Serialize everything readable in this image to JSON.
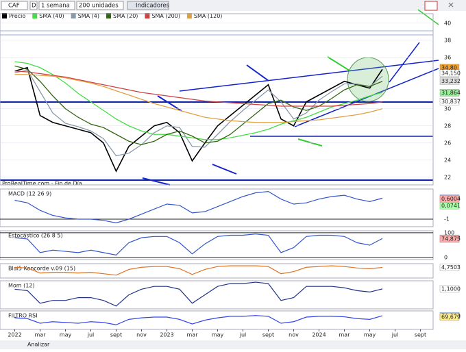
{
  "toolbar": {
    "symbol": "CAF",
    "period_letter": "D",
    "period": "1 semana",
    "units": "200 unidades",
    "indicators": "Indicadores"
  },
  "source": "ProRealTime.com - Fin de Día",
  "footer": {
    "analyze": "Analizar"
  },
  "chart_data": [
    {
      "type": "line",
      "panel": "price",
      "x": [
        "2022-01",
        "2022-02",
        "2022-03",
        "2022-04",
        "2022-05",
        "2022-06",
        "2022-07",
        "2022-08",
        "2022-09",
        "2022-10",
        "2022-11",
        "2022-12",
        "2023-01",
        "2023-02",
        "2023-03",
        "2023-04",
        "2023-05",
        "2023-06",
        "2023-07",
        "2023-08",
        "2023-09",
        "2023-10",
        "2023-11",
        "2023-12",
        "2024-01",
        "2024-02",
        "2024-03",
        "2024-04",
        "2024-05",
        "2024-06"
      ],
      "xlim": [
        "2021-12",
        "2024-10"
      ],
      "xticks": [
        {
          "value": "2022-01",
          "label": "2022"
        },
        {
          "value": "2022-03",
          "label": "mar"
        },
        {
          "value": "2022-05",
          "label": "may"
        },
        {
          "value": "2022-07",
          "label": "jul"
        },
        {
          "value": "2022-09",
          "label": "sept"
        },
        {
          "value": "2022-11",
          "label": "nov"
        },
        {
          "value": "2023-01",
          "label": "2023"
        },
        {
          "value": "2023-03",
          "label": "mar"
        },
        {
          "value": "2023-05",
          "label": "may"
        },
        {
          "value": "2023-07",
          "label": "jul"
        },
        {
          "value": "2023-09",
          "label": "sept"
        },
        {
          "value": "2023-11",
          "label": "nov"
        },
        {
          "value": "2024-01",
          "label": "2024"
        },
        {
          "value": "2024-03",
          "label": "mar"
        },
        {
          "value": "2024-05",
          "label": "may"
        },
        {
          "value": "2024-07",
          "label": "jul"
        },
        {
          "value": "2024-09",
          "label": "sept"
        }
      ],
      "ylim": [
        21.1,
        41.1
      ],
      "yticks": [
        40,
        38,
        36,
        30,
        28,
        26,
        24,
        22
      ],
      "series": [
        {
          "name": "Precio",
          "color": "#000000",
          "values": [
            34.4,
            34.8,
            29.2,
            28.4,
            28.0,
            27.6,
            27.2,
            26.0,
            22.7,
            25.6,
            26.8,
            28.0,
            28.4,
            27.2,
            23.9,
            26.0,
            28.0,
            29.2,
            30.4,
            31.6,
            32.8,
            28.8,
            28.0,
            30.8,
            31.6,
            32.4,
            33.2,
            32.8,
            32.4,
            34.6
          ]
        },
        {
          "name": "SMA (40)",
          "color": "#44dd44",
          "values": [
            35.5,
            35.3,
            34.8,
            34.0,
            33.0,
            31.8,
            30.8,
            29.8,
            28.8,
            28.0,
            27.4,
            27.0,
            27.0,
            26.8,
            26.6,
            26.4,
            26.4,
            26.6,
            26.9,
            27.2,
            27.6,
            28.2,
            28.6,
            29.0,
            29.6,
            30.2,
            30.6,
            31.0,
            31.5,
            31.9
          ]
        },
        {
          "name": "SMA (4)",
          "color": "#8899aa",
          "values": [
            34.2,
            34.5,
            32.0,
            29.5,
            28.3,
            27.9,
            27.4,
            26.5,
            24.5,
            24.8,
            25.8,
            27.2,
            28.0,
            27.8,
            25.6,
            25.5,
            27.0,
            28.5,
            29.8,
            31.0,
            32.2,
            30.8,
            28.8,
            29.5,
            31.0,
            32.0,
            32.9,
            32.9,
            32.6,
            33.8
          ]
        },
        {
          "name": "SMA (20)",
          "color": "#336611",
          "values": [
            35.0,
            34.6,
            33.2,
            31.5,
            30.0,
            29.0,
            28.2,
            27.8,
            27.0,
            26.2,
            25.8,
            26.2,
            27.0,
            27.4,
            26.8,
            26.0,
            26.2,
            27.0,
            28.2,
            29.4,
            30.6,
            31.0,
            30.2,
            29.8,
            30.3,
            31.2,
            32.2,
            32.8,
            32.6,
            33.2
          ]
        },
        {
          "name": "SMA (200)",
          "color": "#d04040",
          "values": [
            34.4,
            34.3,
            34.1,
            33.9,
            33.7,
            33.4,
            33.1,
            32.8,
            32.5,
            32.2,
            31.9,
            31.7,
            31.5,
            31.3,
            31.1,
            30.9,
            30.8,
            30.7,
            30.6,
            30.5,
            30.4,
            30.3,
            30.3,
            30.3,
            30.3,
            30.3,
            30.4,
            30.5,
            30.6,
            30.8
          ]
        },
        {
          "name": "SMA (120)",
          "color": "#e0a040",
          "values": [
            34.0,
            34.0,
            33.9,
            33.8,
            33.6,
            33.3,
            33.0,
            32.6,
            32.1,
            31.6,
            31.1,
            30.6,
            30.2,
            29.8,
            29.4,
            29.0,
            28.8,
            28.6,
            28.5,
            28.4,
            28.4,
            28.4,
            28.5,
            28.6,
            28.7,
            28.9,
            29.1,
            29.3,
            29.6,
            30.0
          ]
        }
      ],
      "price_labels": [
        {
          "value": 34.8,
          "label": "34,80",
          "color": "#f0a030"
        },
        {
          "value": 34.15,
          "label": "34,150",
          "color": "#ffffff"
        },
        {
          "value": 33.232,
          "label": "33,232",
          "color": "#dddddd"
        },
        {
          "value": 31.864,
          "label": "31,864",
          "color": "#99ee99"
        },
        {
          "value": 30.837,
          "label": "30,837",
          "color": "#ffffff"
        }
      ]
    },
    {
      "type": "line",
      "title": "MACD (12 26 9)",
      "ylim": [
        -1.6,
        1.4
      ],
      "yticks": [
        -1
      ],
      "color": "#3355cc",
      "values": [
        0.5,
        0.3,
        -0.3,
        -0.7,
        -0.9,
        -1.0,
        -1.0,
        -1.1,
        -1.3,
        -1.0,
        -0.6,
        -0.2,
        0.2,
        0.1,
        -0.5,
        -0.4,
        0.0,
        0.4,
        0.8,
        1.1,
        1.2,
        0.6,
        0.2,
        0.3,
        0.6,
        0.8,
        0.9,
        0.6,
        0.4,
        0.67
      ],
      "price_labels": [
        {
          "value": 0.6745,
          "label": "0,6745",
          "color": "#aaccff"
        },
        {
          "value": 0.6004,
          "label": "0,6004",
          "color": "#ffaaaa"
        },
        {
          "value": 0.0741,
          "label": "0,0741",
          "color": "#aaffaa"
        }
      ]
    },
    {
      "type": "line",
      "title": "Estocástico (26 8 5)",
      "ylim": [
        -8,
        108
      ],
      "yticks": [
        100,
        0
      ],
      "color": "#3355cc",
      "values": [
        80,
        75,
        20,
        30,
        25,
        20,
        30,
        20,
        10,
        60,
        80,
        85,
        85,
        60,
        15,
        55,
        85,
        90,
        90,
        95,
        90,
        20,
        40,
        85,
        90,
        90,
        85,
        60,
        50,
        77
      ],
      "price_labels": [
        {
          "value": 77.333,
          "label": "77,333",
          "color": "#aaccff"
        },
        {
          "value": 74.875,
          "label": "74,875",
          "color": "#ffaaaa"
        }
      ]
    },
    {
      "type": "line",
      "title": "Blai5 Koncorde v.09 (15)",
      "ylim": [
        -10,
        10
      ],
      "yticks": [],
      "color": "#e07020",
      "values": [
        5,
        4,
        -3,
        -2,
        -2,
        -3,
        -2,
        -4,
        -6,
        2,
        5,
        6,
        6,
        3,
        -5,
        2,
        6,
        7,
        7,
        7,
        6,
        -4,
        -1,
        5,
        6,
        7,
        6,
        4,
        3,
        4.75
      ],
      "price_labels": [
        {
          "value": 4.7503,
          "label": "4,7503",
          "color": "#ffffff"
        }
      ]
    },
    {
      "type": "line",
      "title": "Mom (12)",
      "ylim": [
        -6,
        4
      ],
      "yticks": [],
      "color": "#223388",
      "values": [
        1,
        0.5,
        -4,
        -3,
        -3,
        -2,
        -2,
        -3,
        -5,
        -1,
        1,
        2,
        2,
        1,
        -4,
        -1,
        2,
        3,
        3,
        3.5,
        3,
        -3,
        -2,
        2,
        2,
        2,
        1.5,
        0.5,
        0,
        1.1
      ],
      "price_labels": [
        {
          "value": 1.1,
          "label": "1,1000",
          "color": "#ffffff"
        }
      ]
    },
    {
      "type": "line",
      "title": "FILTRO RSI",
      "ylim": [
        -10,
        110
      ],
      "yticks": [],
      "color": "#3344ee",
      "values": [
        65,
        60,
        30,
        40,
        35,
        30,
        40,
        35,
        20,
        55,
        65,
        70,
        70,
        55,
        25,
        50,
        65,
        75,
        75,
        80,
        75,
        30,
        40,
        70,
        75,
        75,
        72,
        60,
        55,
        78.4
      ],
      "price_labels": [
        {
          "value": 78.369,
          "label": "78,369",
          "color": "#aaccff"
        },
        {
          "value": 69.679,
          "label": "69,679",
          "color": "#ffee88"
        }
      ]
    }
  ]
}
